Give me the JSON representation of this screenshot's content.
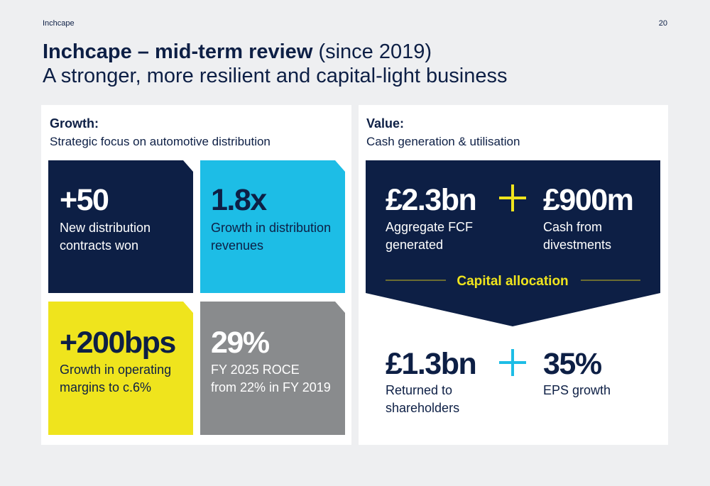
{
  "header": {
    "brand": "Inchcape",
    "page": "20"
  },
  "title": {
    "bold": "Inchcape – mid-term review",
    "light": "(since 2019)",
    "subtitle": "A stronger, more resilient and capital-light business"
  },
  "growth": {
    "heading": "Growth:",
    "subheading": "Strategic focus on automotive distribution",
    "tiles": [
      {
        "value": "+50",
        "label": [
          "New distribution",
          "contracts won"
        ]
      },
      {
        "value": "1.8x",
        "label": [
          "Growth in distribution",
          "revenues"
        ]
      },
      {
        "value": "+200bps",
        "label": [
          "Growth in operating",
          "margins to c.6%"
        ]
      },
      {
        "value": "29%",
        "label": [
          "FY 2025 ROCE",
          "from 22% in FY 2019"
        ]
      }
    ]
  },
  "value": {
    "heading": "Value:",
    "subheading": "Cash generation & utilisation",
    "sources": [
      {
        "value": "£2.3bn",
        "label": [
          "Aggregate FCF",
          "generated"
        ]
      },
      {
        "value": "£900m",
        "label": [
          "Cash from",
          "divestments"
        ]
      }
    ],
    "capital_allocation": "Capital allocation",
    "uses": [
      {
        "value": "£1.3bn",
        "label": [
          "Returned to",
          "shareholders"
        ]
      },
      {
        "value": "35%",
        "label": [
          "EPS growth"
        ]
      }
    ]
  }
}
